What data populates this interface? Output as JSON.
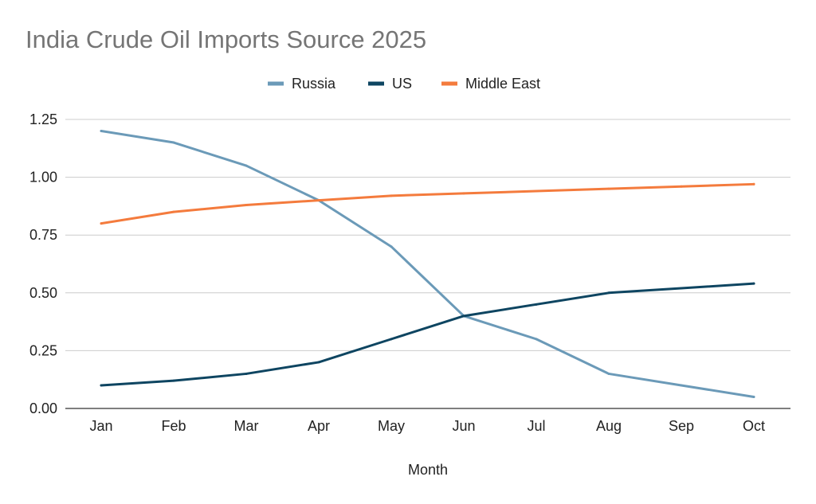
{
  "chart_data": {
    "type": "line",
    "title": "India Crude Oil Imports Source 2025",
    "xlabel": "Month",
    "ylabel": "",
    "categories": [
      "Jan",
      "Feb",
      "Mar",
      "Apr",
      "May",
      "Jun",
      "Jul",
      "Aug",
      "Sep",
      "Oct"
    ],
    "ylim": [
      0,
      1.25
    ],
    "yticks": [
      "0.00",
      "0.25",
      "0.50",
      "0.75",
      "1.00",
      "1.25"
    ],
    "grid": true,
    "legend_position": "top-center",
    "series": [
      {
        "name": "Russia",
        "color": "#6b9ab8",
        "values": [
          1.2,
          1.15,
          1.05,
          0.9,
          0.7,
          0.4,
          0.3,
          0.15,
          0.1,
          0.05
        ]
      },
      {
        "name": "US",
        "color": "#0e4561",
        "values": [
          0.1,
          0.12,
          0.15,
          0.2,
          0.3,
          0.4,
          0.45,
          0.5,
          0.52,
          0.54
        ]
      },
      {
        "name": "Middle East",
        "color": "#f47b3d",
        "values": [
          0.8,
          0.85,
          0.88,
          0.9,
          0.92,
          0.93,
          0.94,
          0.95,
          0.96,
          0.97
        ]
      }
    ]
  }
}
